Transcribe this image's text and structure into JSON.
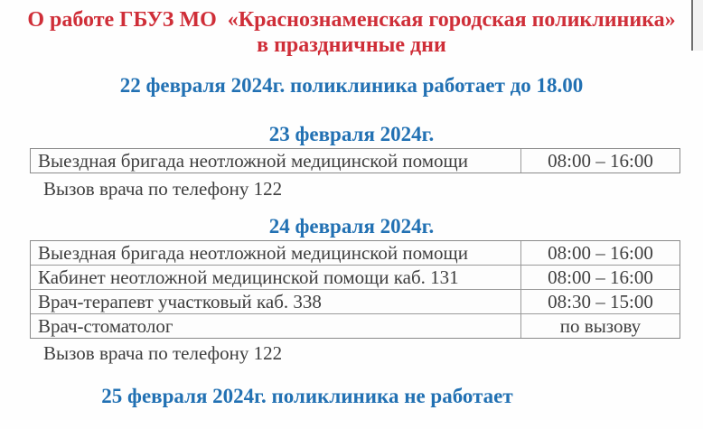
{
  "colors": {
    "title_red": "#cf2e38",
    "heading_blue": "#2271b3",
    "body_text": "#3e3e3e",
    "table_border": "#8a8a8a"
  },
  "title": {
    "line1": "О работе ГБУЗ МО  «Краснознаменская городская поликлиника»",
    "line2": "в праздничные дни"
  },
  "notices": {
    "feb22": "22 февраля 2024г. поликлиника работает до 18.00",
    "feb25": "25 февраля 2024г. поликлиника не работает"
  },
  "sections": [
    {
      "heading": "23 февраля 2024г.",
      "rows": [
        {
          "service": "Выездная бригада неотложной медицинской помощи",
          "time": "08:00 – 16:00"
        }
      ],
      "note": "Вызов врача по телефону 122"
    },
    {
      "heading": "24 февраля 2024г.",
      "rows": [
        {
          "service": "Выездная бригада неотложной медицинской помощи",
          "time": "08:00 – 16:00"
        },
        {
          "service": "Кабинет неотложной медицинской помощи каб. 131",
          "time": "08:00 – 16:00"
        },
        {
          "service": "Врач-терапевт участковый каб. 338",
          "time": "08:30 – 15:00"
        },
        {
          "service": "Врач-стоматолог",
          "time": "по вызову"
        }
      ],
      "note": "Вызов врача по телефону 122"
    }
  ]
}
